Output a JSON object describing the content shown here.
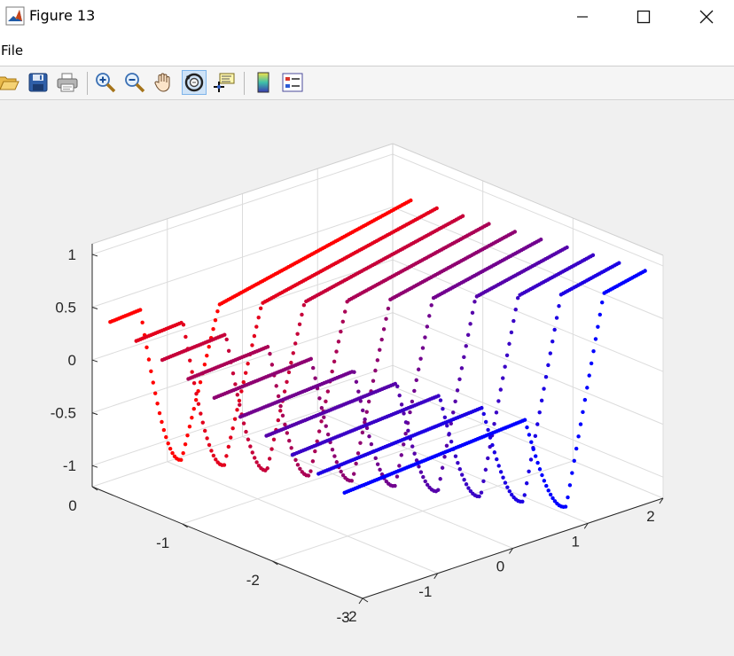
{
  "window": {
    "title": "Figure 13",
    "app_icon": "matlab-logo-icon",
    "controls": [
      "minimize-icon",
      "maximize-icon",
      "close-icon"
    ]
  },
  "menu": {
    "items": [
      "File"
    ]
  },
  "toolbar": {
    "buttons": [
      {
        "name": "open-file-icon"
      },
      {
        "name": "save-icon"
      },
      {
        "name": "print-icon"
      },
      {
        "name": "zoom-in-icon"
      },
      {
        "name": "zoom-out-icon"
      },
      {
        "name": "pan-hand-icon"
      },
      {
        "name": "rotate-3d-icon",
        "active": true
      },
      {
        "name": "data-cursor-icon"
      },
      {
        "name": "insert-colorbar-icon"
      },
      {
        "name": "insert-legend-icon"
      }
    ]
  },
  "chart_data": {
    "type": "scatter",
    "projection": "3d",
    "title": "",
    "xlabel": "",
    "ylabel": "",
    "zlabel": "",
    "axes": {
      "x": {
        "ticks": [
          "-2",
          "-1",
          "0",
          "1",
          "2"
        ],
        "lim": [
          -2,
          2
        ]
      },
      "y": {
        "ticks": [
          "0",
          "-1",
          "-2",
          "-3"
        ],
        "lim": [
          -3,
          0
        ]
      },
      "z": {
        "ticks": [
          "1",
          "0.5",
          "0",
          "-0.5",
          "-1"
        ],
        "lim": [
          -1.2,
          1.1
        ]
      }
    },
    "grid": true,
    "color_gradient": {
      "start": "#ff0000",
      "end": "#0000ff"
    },
    "series_count": 10,
    "description_of_data": "Ten point-cloud curves, each a valley shape dropping to about -1.1 then rising, colored from red to blue across the series"
  }
}
